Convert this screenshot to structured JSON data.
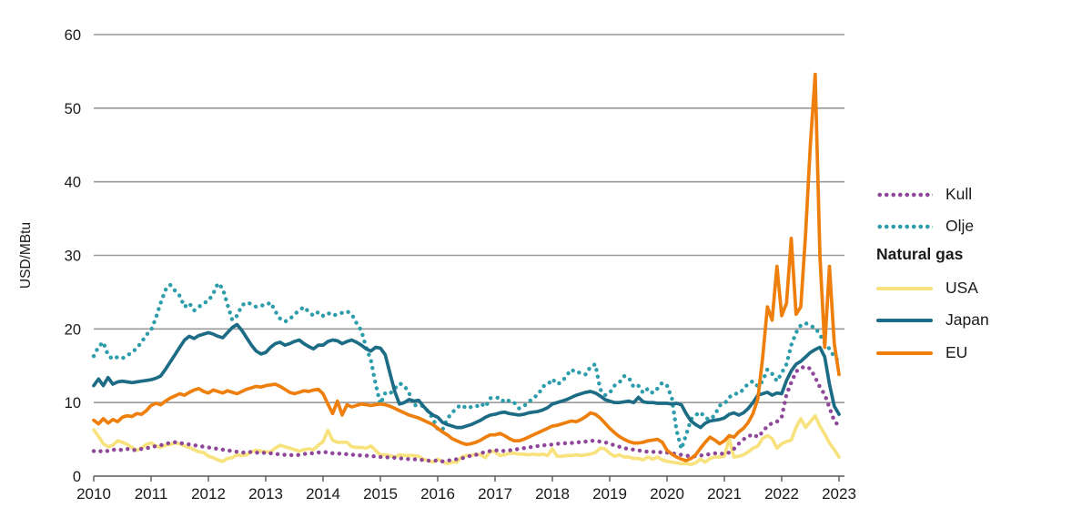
{
  "chart_data": {
    "type": "line",
    "title": "",
    "ylabel": "USD/MBtu",
    "ylim": [
      0,
      60
    ],
    "yticks": [
      0,
      10,
      20,
      30,
      40,
      50,
      60
    ],
    "x_tick_labels": [
      "2010",
      "2011",
      "2012",
      "2013",
      "2014",
      "2015",
      "2016",
      "2017",
      "2018",
      "2019",
      "2020",
      "2021",
      "2022",
      "2023"
    ],
    "frequency": "monthly",
    "x_range": "2010-01 to 2023-01",
    "grid": "horizontal",
    "legend": {
      "position": "right",
      "group_header": "Natural gas"
    },
    "colors": {
      "kull": "#8f4899",
      "olje": "#2d9dab",
      "usa": "#f8e27d",
      "japan": "#1d6c85",
      "eu": "#ee7f0c",
      "gridline": "#999999",
      "axis": "#595959"
    },
    "series": [
      {
        "name": "Kull",
        "style": "dotted",
        "color": "#8f4899",
        "values": [
          3.4,
          3.3,
          3.5,
          3.4,
          3.6,
          3.5,
          3.6,
          3.7,
          3.5,
          3.6,
          3.7,
          3.8,
          3.9,
          4.1,
          4.2,
          4.4,
          4.5,
          4.6,
          4.5,
          4.4,
          4.3,
          4.2,
          4.1,
          4.0,
          3.9,
          3.8,
          3.7,
          3.6,
          3.5,
          3.4,
          3.3,
          3.2,
          3.2,
          3.3,
          3.2,
          3.1,
          3.2,
          3.1,
          3.0,
          3.0,
          2.9,
          2.9,
          2.8,
          2.9,
          3.0,
          3.1,
          3.1,
          3.2,
          3.3,
          3.2,
          3.1,
          3.1,
          3.0,
          3.0,
          2.9,
          2.9,
          2.8,
          2.8,
          2.7,
          2.7,
          2.6,
          2.6,
          2.5,
          2.5,
          2.4,
          2.4,
          2.3,
          2.3,
          2.2,
          2.2,
          2.1,
          2.1,
          2.1,
          2.0,
          2.1,
          2.2,
          2.3,
          2.4,
          2.6,
          2.8,
          2.9,
          3.1,
          3.3,
          3.4,
          3.5,
          3.5,
          3.4,
          3.5,
          3.6,
          3.7,
          3.8,
          3.9,
          4.0,
          4.1,
          4.2,
          4.2,
          4.3,
          4.4,
          4.4,
          4.5,
          4.5,
          4.6,
          4.6,
          4.7,
          4.8,
          4.8,
          4.7,
          4.6,
          4.4,
          4.2,
          4.0,
          3.8,
          3.7,
          3.6,
          3.5,
          3.4,
          3.3,
          3.3,
          3.3,
          3.2,
          3.2,
          3.1,
          3.0,
          2.9,
          2.8,
          2.7,
          2.7,
          2.8,
          2.9,
          3.0,
          3.1,
          3.1,
          3.0,
          3.2,
          3.7,
          4.4,
          5.0,
          5.4,
          5.7,
          5.3,
          6.0,
          6.8,
          7.2,
          7.4,
          8.0,
          11.1,
          12.7,
          14.2,
          14.7,
          14.9,
          14.6,
          13.4,
          12.1,
          11.1,
          9.3,
          7.5,
          6.8
        ]
      },
      {
        "name": "Olje",
        "style": "dotted",
        "color": "#2d9dab",
        "values": [
          16.3,
          17.6,
          18.2,
          16.4,
          15.9,
          16.2,
          16.0,
          16.4,
          16.8,
          17.4,
          18.2,
          19.2,
          19.8,
          21.5,
          23.5,
          25.3,
          26.0,
          25.2,
          24.5,
          23.0,
          23.5,
          22.5,
          23.0,
          23.5,
          23.8,
          24.8,
          26.2,
          25.5,
          23.3,
          21.2,
          21.8,
          23.2,
          23.6,
          23.4,
          23.0,
          23.2,
          23.2,
          23.6,
          22.4,
          21.4,
          21.0,
          21.3,
          22.0,
          22.5,
          23.0,
          22.3,
          21.8,
          22.3,
          21.8,
          22.2,
          21.8,
          22.0,
          22.2,
          22.4,
          22.0,
          20.8,
          19.8,
          17.5,
          15.8,
          12.5,
          9.8,
          11.3,
          11.2,
          11.9,
          12.6,
          12.3,
          11.3,
          9.6,
          9.7,
          9.5,
          8.8,
          7.8,
          6.4,
          6.3,
          7.8,
          8.6,
          9.3,
          9.7,
          9.2,
          9.4,
          9.4,
          9.9,
          9.4,
          10.6,
          10.6,
          10.7,
          10.0,
          10.3,
          10.0,
          9.2,
          9.5,
          10.0,
          10.7,
          11.0,
          12.2,
          12.4,
          13.2,
          12.5,
          12.8,
          13.7,
          14.5,
          14.0,
          14.1,
          13.8,
          14.9,
          15.2,
          11.8,
          11.0,
          11.3,
          12.3,
          12.7,
          13.6,
          13.4,
          12.1,
          12.3,
          11.3,
          11.9,
          11.3,
          11.9,
          12.7,
          12.3,
          10.6,
          6.2,
          3.7,
          5.6,
          7.7,
          8.3,
          8.7,
          7.9,
          7.7,
          8.3,
          9.6,
          9.8,
          10.7,
          11.2,
          11.2,
          11.8,
          12.6,
          12.9,
          12.2,
          12.9,
          14.5,
          13.9,
          12.9,
          14.0,
          15.2,
          17.8,
          19.5,
          20.5,
          20.8,
          20.4,
          20.2,
          19.2,
          18.1,
          17.3,
          16.2,
          15.6
        ]
      },
      {
        "name": "USA",
        "style": "solid",
        "color": "#f8e27d",
        "group": "Natural gas",
        "values": [
          6.3,
          5.4,
          4.4,
          4.0,
          4.2,
          4.8,
          4.6,
          4.3,
          3.9,
          3.5,
          3.8,
          4.3,
          4.5,
          4.1,
          3.9,
          4.2,
          4.3,
          4.5,
          4.4,
          4.1,
          3.9,
          3.6,
          3.3,
          3.2,
          2.7,
          2.5,
          2.2,
          2.0,
          2.4,
          2.5,
          2.9,
          2.8,
          2.9,
          3.3,
          3.5,
          3.4,
          3.3,
          3.3,
          3.8,
          4.2,
          4.0,
          3.8,
          3.6,
          3.4,
          3.6,
          3.7,
          3.6,
          4.2,
          4.7,
          6.2,
          4.9,
          4.6,
          4.6,
          4.6,
          4.0,
          3.9,
          3.9,
          3.8,
          4.1,
          3.5,
          2.9,
          2.9,
          2.8,
          2.6,
          2.9,
          2.8,
          2.8,
          2.8,
          2.7,
          2.3,
          2.1,
          1.9,
          2.3,
          2.0,
          1.7,
          1.9,
          1.9,
          2.6,
          2.8,
          2.8,
          3.0,
          2.9,
          2.5,
          3.4,
          3.3,
          2.8,
          2.9,
          3.1,
          3.1,
          3.0,
          3.0,
          2.9,
          3.0,
          2.9,
          3.0,
          2.8,
          3.7,
          2.7,
          2.7,
          2.8,
          2.8,
          2.9,
          2.8,
          2.9,
          3.0,
          3.2,
          3.8,
          3.7,
          3.1,
          2.7,
          2.9,
          2.6,
          2.6,
          2.4,
          2.4,
          2.2,
          2.6,
          2.3,
          2.6,
          2.2,
          2.0,
          1.9,
          1.8,
          1.7,
          1.7,
          1.6,
          1.8,
          2.3,
          1.9,
          2.4,
          2.6,
          2.6,
          2.7,
          5.1,
          2.6,
          2.7,
          2.9,
          3.3,
          3.8,
          4.1,
          5.1,
          5.5,
          5.1,
          3.8,
          4.4,
          4.7,
          4.9,
          6.6,
          7.8,
          6.6,
          7.4,
          8.2,
          6.8,
          5.7,
          4.5,
          3.6,
          2.6
        ]
      },
      {
        "name": "Japan",
        "style": "solid",
        "color": "#1d6c85",
        "group": "Natural gas",
        "values": [
          12.3,
          13.2,
          12.3,
          13.4,
          12.5,
          12.8,
          12.9,
          12.8,
          12.7,
          12.8,
          12.9,
          13.0,
          13.1,
          13.3,
          13.6,
          14.5,
          15.5,
          16.5,
          17.5,
          18.5,
          19.0,
          18.7,
          19.1,
          19.3,
          19.5,
          19.3,
          19.0,
          18.8,
          19.5,
          20.2,
          20.6,
          19.8,
          18.8,
          17.8,
          17.0,
          16.6,
          16.8,
          17.5,
          18.0,
          18.2,
          17.8,
          18.0,
          18.3,
          18.5,
          18.0,
          17.6,
          17.3,
          17.8,
          17.8,
          18.3,
          18.5,
          18.4,
          18.0,
          18.3,
          18.5,
          18.2,
          17.8,
          17.3,
          17.0,
          17.5,
          17.4,
          16.5,
          14.0,
          11.5,
          9.8,
          10.0,
          10.4,
          10.2,
          10.3,
          9.5,
          8.8,
          8.3,
          8.0,
          7.3,
          7.0,
          6.8,
          6.6,
          6.6,
          6.8,
          7.0,
          7.3,
          7.6,
          8.0,
          8.3,
          8.4,
          8.6,
          8.7,
          8.5,
          8.4,
          8.3,
          8.4,
          8.6,
          8.7,
          8.8,
          9.0,
          9.3,
          9.8,
          10.0,
          10.2,
          10.4,
          10.7,
          11.0,
          11.2,
          11.4,
          11.5,
          11.3,
          10.9,
          10.4,
          10.2,
          10.0,
          10.0,
          10.1,
          10.2,
          10.0,
          10.7,
          10.1,
          10.0,
          10.0,
          9.9,
          9.9,
          9.9,
          9.8,
          9.9,
          9.7,
          8.5,
          7.5,
          7.0,
          6.6,
          7.2,
          7.5,
          7.6,
          7.7,
          7.9,
          8.4,
          8.6,
          8.3,
          8.6,
          9.2,
          10.0,
          11.0,
          11.2,
          11.4,
          11.0,
          11.3,
          11.2,
          13.0,
          14.3,
          15.2,
          15.6,
          16.2,
          16.8,
          17.2,
          17.5,
          16.2,
          12.5,
          9.5,
          8.4
        ]
      },
      {
        "name": "EU",
        "style": "solid",
        "color": "#ee7f0c",
        "group": "Natural gas",
        "values": [
          7.6,
          7.1,
          7.8,
          7.2,
          7.7,
          7.4,
          8.0,
          8.2,
          8.1,
          8.5,
          8.4,
          8.9,
          9.6,
          9.9,
          9.7,
          10.2,
          10.6,
          10.9,
          11.2,
          11.0,
          11.4,
          11.7,
          11.9,
          11.5,
          11.3,
          11.7,
          11.5,
          11.3,
          11.6,
          11.4,
          11.2,
          11.5,
          11.8,
          12.0,
          12.2,
          12.1,
          12.3,
          12.4,
          12.5,
          12.2,
          11.8,
          11.4,
          11.2,
          11.4,
          11.6,
          11.5,
          11.7,
          11.8,
          11.2,
          9.8,
          8.5,
          10.2,
          8.3,
          9.7,
          9.4,
          9.6,
          9.8,
          9.7,
          9.6,
          9.7,
          9.8,
          9.7,
          9.5,
          9.2,
          8.9,
          8.6,
          8.3,
          8.1,
          7.9,
          7.6,
          7.3,
          7.0,
          6.5,
          6.0,
          5.6,
          5.1,
          4.8,
          4.5,
          4.3,
          4.4,
          4.6,
          4.9,
          5.3,
          5.6,
          5.6,
          5.8,
          5.5,
          5.1,
          4.8,
          4.8,
          5.0,
          5.3,
          5.6,
          5.9,
          6.2,
          6.5,
          6.8,
          6.9,
          7.1,
          7.3,
          7.5,
          7.4,
          7.7,
          8.1,
          8.6,
          8.4,
          7.9,
          7.2,
          6.5,
          5.9,
          5.4,
          5.0,
          4.7,
          4.5,
          4.5,
          4.6,
          4.8,
          4.9,
          5.0,
          4.6,
          3.5,
          3.0,
          2.6,
          2.3,
          2.1,
          2.4,
          2.9,
          3.8,
          4.6,
          5.3,
          4.9,
          4.4,
          4.8,
          5.5,
          5.3,
          6.0,
          6.5,
          7.3,
          8.5,
          10.5,
          16.0,
          23.0,
          21.2,
          28.5,
          21.8,
          23.5,
          32.3,
          22.0,
          23.0,
          33.0,
          45.0,
          54.6,
          30.0,
          17.5,
          28.5,
          18.0,
          13.8
        ]
      }
    ]
  }
}
